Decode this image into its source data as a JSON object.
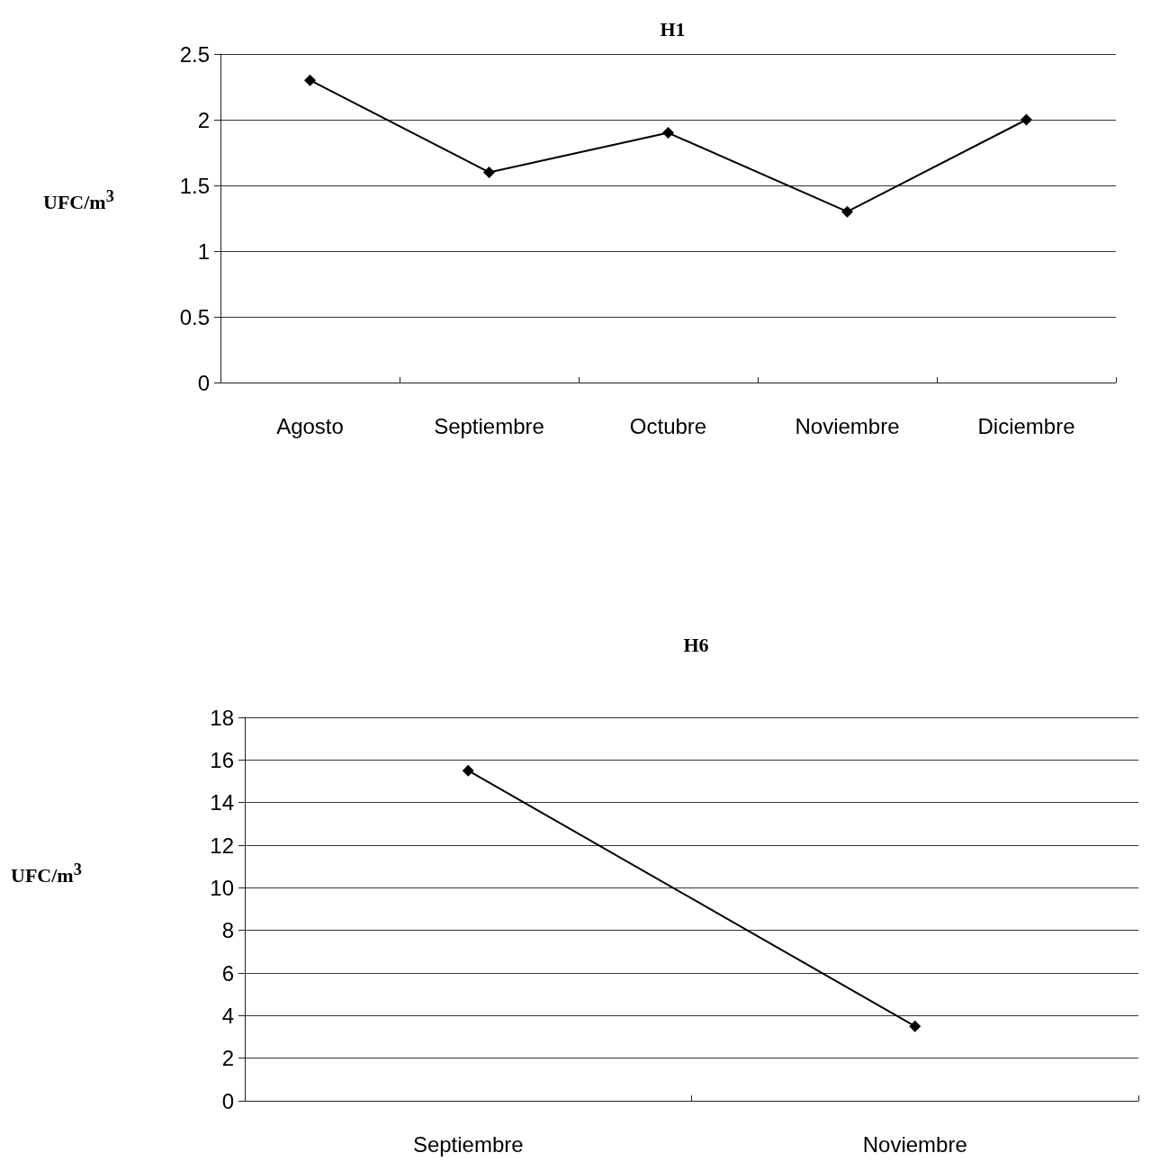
{
  "chart_data": [
    {
      "type": "line",
      "title": "H1",
      "ylabel": "UFC/m$^{3}$",
      "categories": [
        "Agosto",
        "Septiembre",
        "Octubre",
        "Noviembre",
        "Diciembre"
      ],
      "series": [
        {
          "color": "#000000",
          "values": [
            2.3,
            1.6,
            1.9,
            1.3,
            2.0
          ]
        }
      ],
      "ylim": [
        0,
        2.5
      ],
      "yticks": [
        0,
        0.5,
        1,
        1.5,
        2,
        2.5
      ],
      "grid": "y",
      "marker": "diamond",
      "line_style": "solid"
    },
    {
      "type": "line",
      "title": "H6",
      "ylabel": "UFC/m$^{3}$",
      "categories": [
        "Septiembre",
        "Noviembre"
      ],
      "series": [
        {
          "color": "#000000",
          "values": [
            15.5,
            3.5
          ]
        }
      ],
      "ylim": [
        0,
        18
      ],
      "yticks": [
        0,
        2,
        4,
        6,
        8,
        10,
        12,
        14,
        16,
        18
      ],
      "grid": "y",
      "marker": "diamond",
      "line_style": "solid"
    }
  ]
}
